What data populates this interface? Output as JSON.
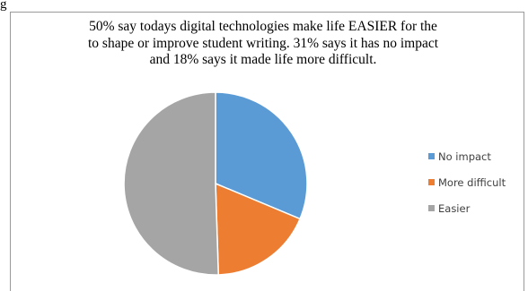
{
  "corner_label": "g",
  "title_lines": [
    "50% say todays digital technologies make life EASIER for the",
    "to shape or improve student writing. 31% says it has no impact",
    "and 18% says it made life more difficult."
  ],
  "chart_data": {
    "type": "pie",
    "title": "50% say todays digital technologies make life EASIER for the to shape or improve student writing. 31% says it has no impact and 18% says it made life more difficult.",
    "legend_position": "right",
    "start_angle_deg": 0,
    "direction": "clockwise",
    "slices": [
      {
        "label": "No impact",
        "value": 31,
        "color": "#5B9BD5"
      },
      {
        "label": "More difficult",
        "value": 18,
        "color": "#ED7D31"
      },
      {
        "label": "Easier",
        "value": 50,
        "color": "#A5A5A5"
      }
    ]
  },
  "legend": [
    {
      "label": "No impact",
      "color": "#5B9BD5"
    },
    {
      "label": "More difficult",
      "color": "#ED7D31"
    },
    {
      "label": "Easier",
      "color": "#A5A5A5"
    }
  ]
}
